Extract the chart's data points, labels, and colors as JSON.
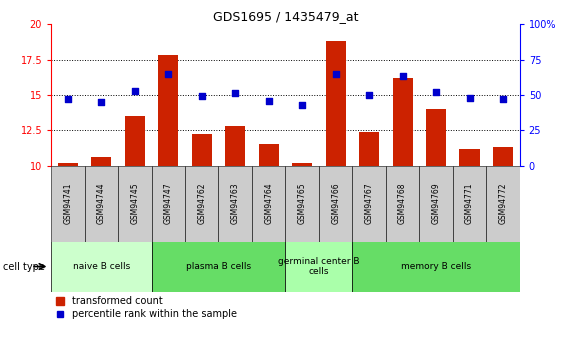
{
  "title": "GDS1695 / 1435479_at",
  "samples": [
    "GSM94741",
    "GSM94744",
    "GSM94745",
    "GSM94747",
    "GSM94762",
    "GSM94763",
    "GSM94764",
    "GSM94765",
    "GSM94766",
    "GSM94767",
    "GSM94768",
    "GSM94769",
    "GSM94771",
    "GSM94772"
  ],
  "bar_values": [
    10.2,
    10.6,
    13.5,
    17.8,
    12.2,
    12.8,
    11.5,
    10.2,
    18.8,
    12.4,
    16.2,
    14.0,
    11.2,
    11.3
  ],
  "dot_values": [
    47,
    45,
    53,
    65,
    49,
    51,
    46,
    43,
    65,
    50,
    63,
    52,
    48,
    47
  ],
  "ylim_left": [
    10,
    20
  ],
  "ylim_right": [
    0,
    100
  ],
  "yticks_left": [
    10,
    12.5,
    15,
    17.5,
    20
  ],
  "yticks_right": [
    0,
    25,
    50,
    75,
    100
  ],
  "bar_color": "#cc2200",
  "dot_color": "#0000cc",
  "cell_types": [
    {
      "label": "naive B cells",
      "start": 0,
      "end": 3,
      "color": "#ccffcc"
    },
    {
      "label": "plasma B cells",
      "start": 3,
      "end": 7,
      "color": "#66dd66"
    },
    {
      "label": "germinal center B\ncells",
      "start": 7,
      "end": 9,
      "color": "#aaffaa"
    },
    {
      "label": "memory B cells",
      "start": 9,
      "end": 14,
      "color": "#66dd66"
    }
  ],
  "legend_bar_label": "transformed count",
  "legend_dot_label": "percentile rank within the sample",
  "cell_type_label": "cell type",
  "sample_bg_color": "#cccccc"
}
